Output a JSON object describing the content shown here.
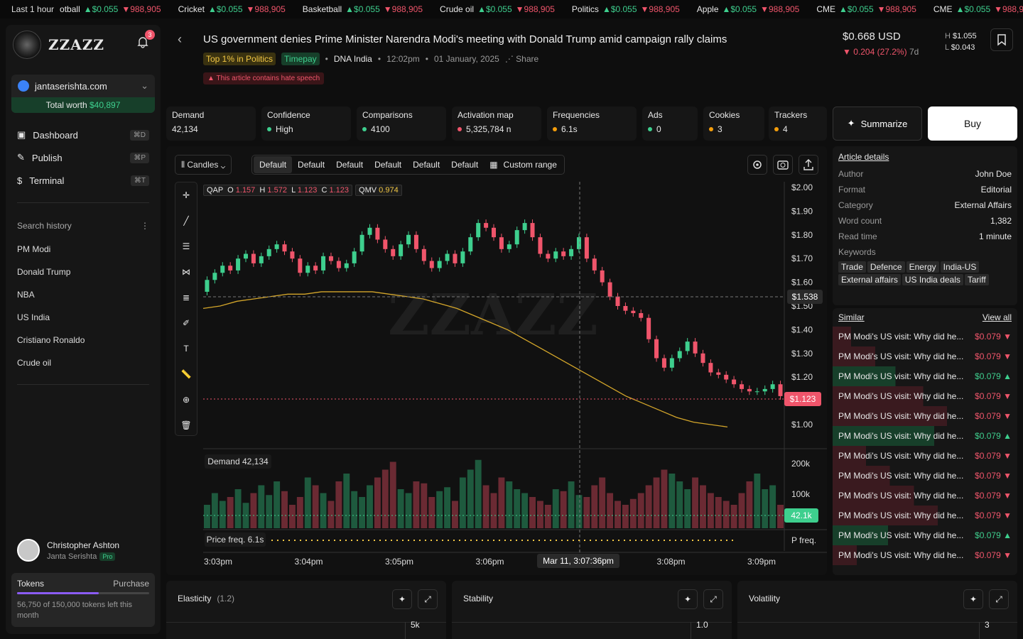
{
  "ticker": {
    "label": "Last 1 hour",
    "items": [
      {
        "name": "otball",
        "up": "$0.055",
        "down": "988,905"
      },
      {
        "name": "Cricket",
        "up": "$0.055",
        "down": "988,905"
      },
      {
        "name": "Basketball",
        "up": "$0.055",
        "down": "988,905"
      },
      {
        "name": "Crude oil",
        "up": "$0.055",
        "down": "988,905"
      },
      {
        "name": "Politics",
        "up": "$0.055",
        "down": "988,905"
      },
      {
        "name": "Apple",
        "up": "$0.055",
        "down": "988,905"
      },
      {
        "name": "CME",
        "up": "$0.055",
        "down": "988,905"
      },
      {
        "name": "CME",
        "up": "$0.055",
        "down": "988,905"
      }
    ]
  },
  "brand": "ZZAZZ",
  "notif_count": "3",
  "account": {
    "domain": "jantaserishta.com",
    "worth_label": "Total worth",
    "worth": "$40,897"
  },
  "nav": [
    {
      "label": "Dashboard",
      "kbd": "⌘D"
    },
    {
      "label": "Publish",
      "kbd": "⌘P"
    },
    {
      "label": "Terminal",
      "kbd": "⌘T"
    }
  ],
  "search_history": {
    "title": "Search history",
    "items": [
      "PM Modi",
      "Donald Trump",
      "NBA",
      "US India",
      "Cristiano Ronaldo",
      "Crude oil"
    ]
  },
  "user": {
    "name": "Christopher Ashton",
    "org": "Janta Serishta",
    "badge": "Pro"
  },
  "tokens": {
    "title": "Tokens",
    "action": "Purchase",
    "note": "56,750 of 150,000 tokens left this month",
    "used_fraction": 0.62
  },
  "article": {
    "title": "US government denies Prime Minister Narendra Modi's meeting with Donald Trump amid campaign rally claims",
    "tag1": "Top 1% in Politics",
    "tag2": "Timepay",
    "source": "DNA India",
    "time": "12:02pm",
    "date": "01 January, 2025",
    "share": "Share",
    "warning": "This article contains hate speech"
  },
  "price": {
    "value": "$0.668 USD",
    "change": "0.204 (27.2%)",
    "period": "7d",
    "high_label": "H",
    "high": "$1.055",
    "low_label": "L",
    "low": "$0.043"
  },
  "metrics": [
    {
      "label": "Demand",
      "value": "42,134"
    },
    {
      "label": "Confidence",
      "value": "High",
      "color": "#3ecf8e"
    },
    {
      "label": "Comparisons",
      "value": "4100",
      "color": "#3ecf8e"
    },
    {
      "label": "Activation map",
      "value": "5,325,784 n",
      "color": "#f0556b"
    },
    {
      "label": "Frequencies",
      "value": "6.1s",
      "color": "#f59e0b"
    },
    {
      "label": "Ads",
      "value": "0",
      "color": "#3ecf8e"
    },
    {
      "label": "Cookies",
      "value": "3",
      "color": "#f59e0b"
    },
    {
      "label": "Trackers",
      "value": "4",
      "color": "#f59e0b"
    }
  ],
  "summarize": "Summarize",
  "buy": "Buy",
  "toolbar": {
    "chart_type": "Candles",
    "ranges": [
      "Default",
      "Default",
      "Default",
      "Default",
      "Default",
      "Default"
    ],
    "custom": "Custom range"
  },
  "ohlc": {
    "sym": "QAP",
    "o": "1.157",
    "h": "1.572",
    "l": "1.123",
    "c": "1.123",
    "qmv_label": "QMV",
    "qmv": "0.974"
  },
  "demand_label": "Demand",
  "demand_value": "42,134",
  "freq_label": "Price freq.",
  "freq_value": "6.1s",
  "pfreq": "P freq.",
  "watermark": "ZZAZZ",
  "crosshair": {
    "time_label": "Mar 11, 3:07:36pm",
    "price_label": "$1.538",
    "last_price": "$1.123",
    "vol_label": "42.1k"
  },
  "chart_data": {
    "type": "candlestick",
    "ylim": [
      1.0,
      2.0
    ],
    "y_ticks": [
      "$2.00",
      "$1.90",
      "$1.80",
      "$1.70",
      "$1.60",
      "$1.50",
      "$1.40",
      "$1.30",
      "$1.20",
      "$1.00"
    ],
    "y_tick_values": [
      2.0,
      1.9,
      1.8,
      1.7,
      1.6,
      1.5,
      1.4,
      1.3,
      1.2,
      1.0
    ],
    "x_ticks": [
      "3:03pm",
      "3:04pm",
      "3:05pm",
      "3:06pm",
      "3:07pm",
      "3:08pm",
      "3:09pm"
    ],
    "vol_ticks": [
      "200k",
      "100k"
    ],
    "closes": [
      1.61,
      1.64,
      1.67,
      1.65,
      1.7,
      1.72,
      1.68,
      1.71,
      1.74,
      1.76,
      1.73,
      1.7,
      1.64,
      1.67,
      1.65,
      1.71,
      1.69,
      1.66,
      1.68,
      1.73,
      1.8,
      1.83,
      1.78,
      1.74,
      1.71,
      1.76,
      1.8,
      1.74,
      1.69,
      1.66,
      1.69,
      1.72,
      1.68,
      1.73,
      1.79,
      1.85,
      1.83,
      1.79,
      1.74,
      1.76,
      1.82,
      1.85,
      1.79,
      1.72,
      1.7,
      1.73,
      1.71,
      1.74,
      1.79,
      1.7,
      1.65,
      1.6,
      1.54,
      1.5,
      1.48,
      1.47,
      1.45,
      1.36,
      1.28,
      1.24,
      1.28,
      1.31,
      1.35,
      1.3,
      1.26,
      1.22,
      1.21,
      1.19,
      1.17,
      1.15,
      1.14,
      1.14,
      1.15,
      1.17,
      1.12
    ],
    "volumes": [
      60,
      90,
      70,
      80,
      100,
      65,
      90,
      110,
      85,
      120,
      95,
      60,
      80,
      130,
      110,
      90,
      70,
      120,
      140,
      95,
      80,
      110,
      130,
      150,
      170,
      100,
      90,
      120,
      115,
      80,
      95,
      105,
      70,
      130,
      150,
      175,
      110,
      90,
      130,
      120,
      100,
      90,
      80,
      70,
      60,
      100,
      95,
      120,
      85,
      80,
      110,
      130,
      90,
      70,
      60,
      75,
      90,
      110,
      130,
      150,
      140,
      120,
      100,
      130,
      110,
      90,
      80,
      70,
      60,
      90,
      120,
      140,
      100,
      110,
      60
    ],
    "signal": [
      1.49,
      1.5,
      1.52,
      1.53,
      1.54,
      1.55,
      1.55,
      1.56,
      1.56,
      1.56,
      1.56,
      1.55,
      1.54,
      1.53,
      1.51,
      1.49,
      1.46,
      1.43,
      1.4,
      1.36,
      1.32,
      1.28,
      1.24,
      1.2,
      1.16,
      1.12,
      1.09,
      1.06,
      1.03,
      1.01,
      1.0,
      0.99
    ]
  },
  "details": {
    "title": "Article details",
    "rows": [
      [
        "Author",
        "John Doe"
      ],
      [
        "Format",
        "Editorial"
      ],
      [
        "Category",
        "External Affairs"
      ],
      [
        "Word count",
        "1,382"
      ],
      [
        "Read time",
        "1 minute"
      ]
    ],
    "kw_label": "Keywords",
    "keywords": [
      "Trade",
      "Defence",
      "Energy",
      "India-US",
      "External affairs",
      "US India deals",
      "Tariff"
    ]
  },
  "similar": {
    "title": "Similar",
    "view_all": "View all",
    "item_text": "PM Modi's US visit: Why did he...",
    "price": "$0.079",
    "dirs": [
      "down",
      "down",
      "up",
      "down",
      "down",
      "up",
      "down",
      "down",
      "down",
      "down",
      "up",
      "down"
    ]
  },
  "bottom": [
    {
      "title": "Elasticity",
      "sub": "(1.2)",
      "axis": "5k"
    },
    {
      "title": "Stability",
      "sub": "",
      "axis": "1.0"
    },
    {
      "title": "Volatility",
      "sub": "",
      "axis": "3"
    }
  ]
}
